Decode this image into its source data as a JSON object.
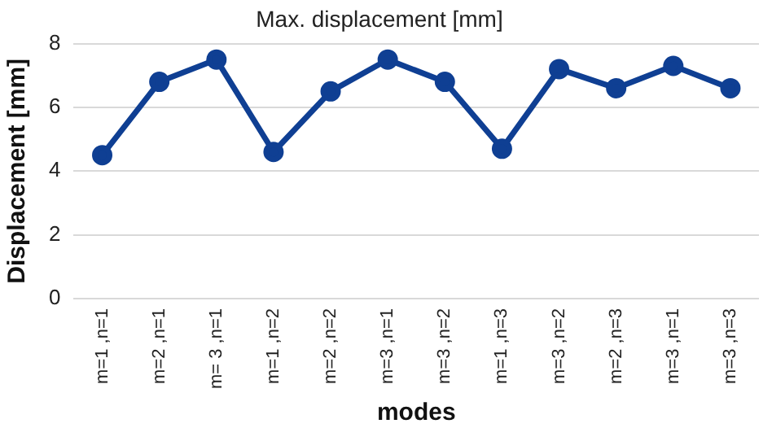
{
  "chart_data": {
    "type": "line",
    "title": "Max. displacement [mm]",
    "xlabel": "modes",
    "ylabel": "Displacement [mm]",
    "categories": [
      "m=1 ,n=1",
      "m=2 ,n=1",
      "m= 3 ,n=1",
      "m=1 ,n=2",
      "m=2 ,n=2",
      "m=3 ,n=1",
      "m=3 ,n=2",
      "m=1 ,n=3",
      "m=3 ,n=2",
      "m=2 ,n=3",
      "m=3 ,n=1",
      "m=3 ,n=3"
    ],
    "series": [
      {
        "color": "#0f3f93",
        "values": [
          4.5,
          6.8,
          7.5,
          4.6,
          6.5,
          7.5,
          6.8,
          4.7,
          7.2,
          6.6,
          7.3,
          6.6
        ]
      }
    ],
    "ylim": [
      0,
      8
    ],
    "yticks": [
      0,
      2,
      4,
      6,
      8
    ],
    "grid": "y",
    "legend": false,
    "marker": "circle",
    "line_style": "solid"
  }
}
